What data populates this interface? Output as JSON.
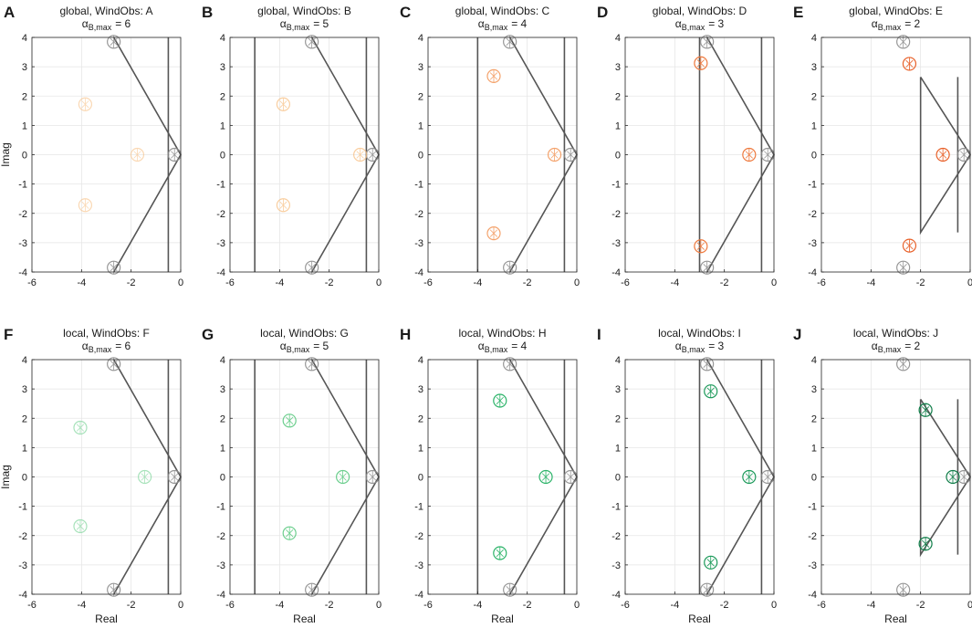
{
  "figure": {
    "colors": {
      "grid": "#e6e6e6",
      "axis": "#262626",
      "boundary": "#555555",
      "open_loop": "#8c8c8c",
      "text": "#1a1a1a"
    },
    "global_row": {
      "title_prefix": "global, WindObs:",
      "xlabel": "",
      "ylabel": "Imag"
    },
    "local_row": {
      "title_prefix": "local, WindObs:",
      "xlabel": "Real",
      "ylabel": "Imag"
    }
  },
  "chart_data": [
    {
      "type": "scatter",
      "panel": "A",
      "title": "global, WindObs: A",
      "alpha_label": "α",
      "alpha_sub": "B,max",
      "alpha_value": "= 6",
      "xlabel": "",
      "ylabel": "Imag",
      "xlim": [
        -6,
        0
      ],
      "ylim": [
        -4,
        4
      ],
      "xticks": [
        "-6",
        "-4",
        "-2",
        "0"
      ],
      "yticks": [
        "-4",
        "-3",
        "-2",
        "-1",
        "0",
        "1",
        "2",
        "3",
        "4"
      ],
      "grid": true,
      "boundary": {
        "kind": "cone",
        "vertical_x": [
          -0.5
        ],
        "cone_apex_x": 0.0,
        "cone_top_y": 4.0
      },
      "open_loop_poles": [
        [
          -2.7,
          3.85
        ],
        [
          -0.25,
          0
        ],
        [
          -2.7,
          -3.85
        ]
      ],
      "closed_loop_poles": [
        [
          -3.85,
          1.72
        ],
        [
          -1.75,
          0
        ],
        [
          -3.85,
          -1.72
        ]
      ],
      "pole_color": "#f7ba78",
      "pole_opacity": 0.55
    },
    {
      "type": "scatter",
      "panel": "B",
      "title": "global, WindObs: B",
      "alpha_label": "α",
      "alpha_sub": "B,max",
      "alpha_value": "= 5",
      "xlabel": "",
      "ylabel": "",
      "xlim": [
        -6,
        0
      ],
      "ylim": [
        -4,
        4
      ],
      "xticks": [
        "-6",
        "-4",
        "-2",
        "0"
      ],
      "yticks": [
        "-4",
        "-3",
        "-2",
        "-1",
        "0",
        "1",
        "2",
        "3",
        "4"
      ],
      "grid": true,
      "boundary": {
        "kind": "cone",
        "vertical_x": [
          -5,
          -0.5
        ],
        "cone_apex_x": 0.0,
        "cone_top_y": 4.0
      },
      "open_loop_poles": [
        [
          -2.7,
          3.85
        ],
        [
          -0.25,
          0
        ],
        [
          -2.7,
          -3.85
        ]
      ],
      "closed_loop_poles": [
        [
          -3.85,
          1.72
        ],
        [
          -0.75,
          0
        ],
        [
          -3.85,
          -1.72
        ]
      ],
      "pole_color": "#f7ba78",
      "pole_opacity": 0.7
    },
    {
      "type": "scatter",
      "panel": "C",
      "title": "global, WindObs: C",
      "alpha_label": "α",
      "alpha_sub": "B,max",
      "alpha_value": "= 4",
      "xlabel": "",
      "ylabel": "",
      "xlim": [
        -6,
        0
      ],
      "ylim": [
        -4,
        4
      ],
      "xticks": [
        "-6",
        "-4",
        "-2",
        "0"
      ],
      "yticks": [
        "-4",
        "-3",
        "-2",
        "-1",
        "0",
        "1",
        "2",
        "3",
        "4"
      ],
      "grid": true,
      "boundary": {
        "kind": "cone",
        "vertical_x": [
          -4,
          -0.5
        ],
        "cone_apex_x": 0.0,
        "cone_top_y": 4.0
      },
      "open_loop_poles": [
        [
          -2.7,
          3.85
        ],
        [
          -0.25,
          0
        ],
        [
          -2.7,
          -3.85
        ]
      ],
      "closed_loop_poles": [
        [
          -3.35,
          2.68
        ],
        [
          -0.9,
          0
        ],
        [
          -3.35,
          -2.68
        ]
      ],
      "pole_color": "#f39a5e",
      "pole_opacity": 0.9
    },
    {
      "type": "scatter",
      "panel": "D",
      "title": "global, WindObs: D",
      "alpha_label": "α",
      "alpha_sub": "B,max",
      "alpha_value": "= 3",
      "xlabel": "",
      "ylabel": "",
      "xlim": [
        -6,
        0
      ],
      "ylim": [
        -4,
        4
      ],
      "xticks": [
        "-6",
        "-4",
        "-2",
        "0"
      ],
      "yticks": [
        "-4",
        "-3",
        "-2",
        "-1",
        "0",
        "1",
        "2",
        "3",
        "4"
      ],
      "grid": true,
      "boundary": {
        "kind": "cone",
        "vertical_x": [
          -3,
          -0.5
        ],
        "cone_apex_x": 0.0,
        "cone_top_y": 4.0
      },
      "open_loop_poles": [
        [
          -2.7,
          3.85
        ],
        [
          -0.25,
          0
        ],
        [
          -2.7,
          -3.85
        ]
      ],
      "closed_loop_poles": [
        [
          -2.95,
          3.12
        ],
        [
          -1.0,
          0
        ],
        [
          -2.95,
          -3.12
        ]
      ],
      "pole_color": "#ee7a3f",
      "pole_opacity": 1
    },
    {
      "type": "scatter",
      "panel": "E",
      "title": "global, WindObs: E",
      "alpha_label": "α",
      "alpha_sub": "B,max",
      "alpha_value": "= 2",
      "xlabel": "",
      "ylabel": "",
      "xlim": [
        -6,
        0
      ],
      "ylim": [
        -4,
        4
      ],
      "xticks": [
        "-6",
        "-4",
        "-2",
        "0"
      ],
      "yticks": [
        "-4",
        "-3",
        "-2",
        "-1",
        "0",
        "1",
        "2",
        "3",
        "4"
      ],
      "grid": true,
      "boundary": {
        "kind": "triangle",
        "vertical_x": [
          -0.5
        ],
        "cone_apex_x": 0.0,
        "left_x": -2.0,
        "left_y": 2.65,
        "right_top_y": 2.65
      },
      "open_loop_poles": [
        [
          -2.7,
          3.85
        ],
        [
          -0.25,
          0
        ],
        [
          -2.7,
          -3.85
        ]
      ],
      "closed_loop_poles": [
        [
          -2.45,
          3.1
        ],
        [
          -1.1,
          0
        ],
        [
          -2.45,
          -3.1
        ]
      ],
      "pole_color": "#e8612a",
      "pole_opacity": 1
    },
    {
      "type": "scatter",
      "panel": "F",
      "title": "local, WindObs: F",
      "alpha_label": "α",
      "alpha_sub": "B,max",
      "alpha_value": "= 6",
      "xlabel": "Real",
      "ylabel": "Imag",
      "xlim": [
        -6,
        0
      ],
      "ylim": [
        -4,
        4
      ],
      "xticks": [
        "-6",
        "-4",
        "-2",
        "0"
      ],
      "yticks": [
        "-4",
        "-3",
        "-2",
        "-1",
        "0",
        "1",
        "2",
        "3",
        "4"
      ],
      "grid": true,
      "boundary": {
        "kind": "cone",
        "vertical_x": [
          -0.5
        ],
        "cone_apex_x": 0.0,
        "cone_top_y": 4.0
      },
      "open_loop_poles": [
        [
          -2.7,
          3.85
        ],
        [
          -0.25,
          0
        ],
        [
          -2.7,
          -3.85
        ]
      ],
      "closed_loop_poles": [
        [
          -4.05,
          1.68
        ],
        [
          -1.45,
          0
        ],
        [
          -4.05,
          -1.68
        ]
      ],
      "pole_color": "#8ad9a4",
      "pole_opacity": 0.75
    },
    {
      "type": "scatter",
      "panel": "G",
      "title": "local, WindObs: G",
      "alpha_label": "α",
      "alpha_sub": "B,max",
      "alpha_value": "= 5",
      "xlabel": "Real",
      "ylabel": "",
      "xlim": [
        -6,
        0
      ],
      "ylim": [
        -4,
        4
      ],
      "xticks": [
        "-6",
        "-4",
        "-2",
        "0"
      ],
      "yticks": [
        "-4",
        "-3",
        "-2",
        "-1",
        "0",
        "1",
        "2",
        "3",
        "4"
      ],
      "grid": true,
      "boundary": {
        "kind": "cone",
        "vertical_x": [
          -5,
          -0.5
        ],
        "cone_apex_x": 0.0,
        "cone_top_y": 4.0
      },
      "open_loop_poles": [
        [
          -2.7,
          3.85
        ],
        [
          -0.25,
          0
        ],
        [
          -2.7,
          -3.85
        ]
      ],
      "closed_loop_poles": [
        [
          -3.6,
          1.92
        ],
        [
          -1.45,
          0
        ],
        [
          -3.6,
          -1.92
        ]
      ],
      "pole_color": "#5cc981",
      "pole_opacity": 0.9
    },
    {
      "type": "scatter",
      "panel": "H",
      "title": "local, WindObs: H",
      "alpha_label": "α",
      "alpha_sub": "B,max",
      "alpha_value": "= 4",
      "xlabel": "Real",
      "ylabel": "",
      "xlim": [
        -6,
        0
      ],
      "ylim": [
        -4,
        4
      ],
      "xticks": [
        "-6",
        "-4",
        "-2",
        "0"
      ],
      "yticks": [
        "-4",
        "-3",
        "-2",
        "-1",
        "0",
        "1",
        "2",
        "3",
        "4"
      ],
      "grid": true,
      "boundary": {
        "kind": "cone",
        "vertical_x": [
          -4,
          -0.5
        ],
        "cone_apex_x": 0.0,
        "cone_top_y": 4.0
      },
      "open_loop_poles": [
        [
          -2.7,
          3.85
        ],
        [
          -0.25,
          0
        ],
        [
          -2.7,
          -3.85
        ]
      ],
      "closed_loop_poles": [
        [
          -3.1,
          2.6
        ],
        [
          -1.25,
          0
        ],
        [
          -3.1,
          -2.6
        ]
      ],
      "pole_color": "#2db46a",
      "pole_opacity": 1
    },
    {
      "type": "scatter",
      "panel": "I",
      "title": "local, WindObs: I",
      "alpha_label": "α",
      "alpha_sub": "B,max",
      "alpha_value": "= 3",
      "xlabel": "Real",
      "ylabel": "",
      "xlim": [
        -6,
        0
      ],
      "ylim": [
        -4,
        4
      ],
      "xticks": [
        "-6",
        "-4",
        "-2",
        "0"
      ],
      "yticks": [
        "-4",
        "-3",
        "-2",
        "-1",
        "0",
        "1",
        "2",
        "3",
        "4"
      ],
      "grid": true,
      "boundary": {
        "kind": "cone",
        "vertical_x": [
          -3,
          -0.5
        ],
        "cone_apex_x": 0.0,
        "cone_top_y": 4.0
      },
      "open_loop_poles": [
        [
          -2.7,
          3.85
        ],
        [
          -0.25,
          0
        ],
        [
          -2.7,
          -3.85
        ]
      ],
      "closed_loop_poles": [
        [
          -2.55,
          2.92
        ],
        [
          -1.0,
          0
        ],
        [
          -2.55,
          -2.92
        ]
      ],
      "pole_color": "#1c9a5a",
      "pole_opacity": 1
    },
    {
      "type": "scatter",
      "panel": "J",
      "title": "local, WindObs: J",
      "alpha_label": "α",
      "alpha_sub": "B,max",
      "alpha_value": "= 2",
      "xlabel": "Real",
      "ylabel": "",
      "xlim": [
        -6,
        0
      ],
      "ylim": [
        -4,
        4
      ],
      "xticks": [
        "-6",
        "-4",
        "-2",
        "0"
      ],
      "yticks": [
        "-4",
        "-3",
        "-2",
        "-1",
        "0",
        "1",
        "2",
        "3",
        "4"
      ],
      "grid": true,
      "boundary": {
        "kind": "triangle",
        "vertical_x": [
          -0.5
        ],
        "cone_apex_x": 0.0,
        "left_x": -2.0,
        "left_y": 2.65,
        "right_top_y": 2.65
      },
      "open_loop_poles": [
        [
          -2.7,
          3.85
        ],
        [
          -0.25,
          0
        ],
        [
          -2.7,
          -3.85
        ]
      ],
      "closed_loop_poles": [
        [
          -1.8,
          2.28
        ],
        [
          -0.7,
          0
        ],
        [
          -1.8,
          -2.28
        ]
      ],
      "pole_color": "#0f7d48",
      "pole_opacity": 1
    }
  ]
}
